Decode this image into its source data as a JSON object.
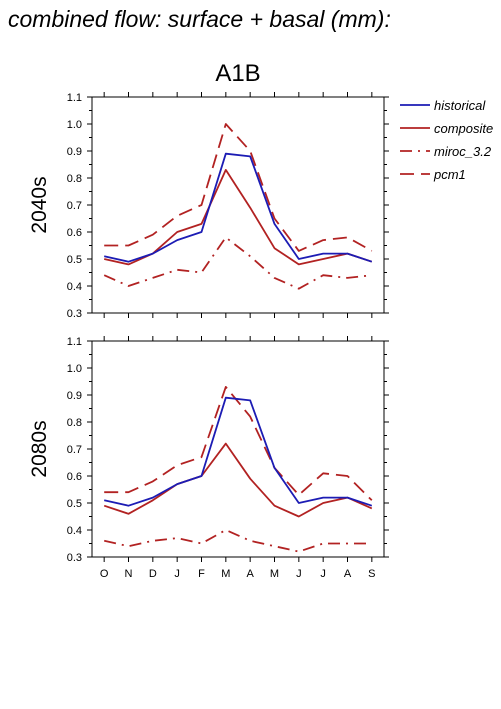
{
  "page_title": "combined flow: surface + basal (mm):",
  "colors": {
    "historical": "#1c1cb4",
    "scenario": "#b22222",
    "axis": "#000000"
  },
  "chart_data": [
    {
      "type": "line",
      "title": "A1B",
      "ylabel": "2040s",
      "xlabel": "",
      "categories": [
        "O",
        "N",
        "D",
        "J",
        "F",
        "M",
        "A",
        "M",
        "J",
        "J",
        "A",
        "S"
      ],
      "ylim": [
        0.3,
        1.1
      ],
      "yticks": [
        "0.3",
        "0.4",
        "0.5",
        "0.6",
        "0.7",
        "0.8",
        "0.9",
        "1.0",
        "1.1"
      ],
      "grid": false,
      "legend_position": "right",
      "series": [
        {
          "name": "historical",
          "color": "#1c1cb4",
          "dash": "solid",
          "values": [
            0.51,
            0.49,
            0.52,
            0.57,
            0.6,
            0.89,
            0.88,
            0.63,
            0.5,
            0.52,
            0.52,
            0.49
          ]
        },
        {
          "name": "composite",
          "color": "#b22222",
          "dash": "solid",
          "values": [
            0.5,
            0.48,
            0.52,
            0.6,
            0.63,
            0.83,
            0.69,
            0.54,
            0.48,
            0.5,
            0.52,
            0.49
          ]
        },
        {
          "name": "miroc_3.2",
          "color": "#b22222",
          "dash": "dashdot",
          "values": [
            0.44,
            0.4,
            0.43,
            0.46,
            0.45,
            0.58,
            0.51,
            0.43,
            0.39,
            0.44,
            0.43,
            0.44
          ]
        },
        {
          "name": "pcm1",
          "color": "#b22222",
          "dash": "dash",
          "values": [
            0.55,
            0.55,
            0.59,
            0.66,
            0.7,
            1.0,
            0.9,
            0.65,
            0.53,
            0.57,
            0.58,
            0.53
          ]
        }
      ]
    },
    {
      "type": "line",
      "title": "",
      "ylabel": "2080s",
      "xlabel": "",
      "categories": [
        "O",
        "N",
        "D",
        "J",
        "F",
        "M",
        "A",
        "M",
        "J",
        "J",
        "A",
        "S"
      ],
      "ylim": [
        0.3,
        1.1
      ],
      "yticks": [
        "0.3",
        "0.4",
        "0.5",
        "0.6",
        "0.7",
        "0.8",
        "0.9",
        "1.0",
        "1.1"
      ],
      "grid": false,
      "series": [
        {
          "name": "historical",
          "color": "#1c1cb4",
          "dash": "solid",
          "values": [
            0.51,
            0.49,
            0.52,
            0.57,
            0.6,
            0.89,
            0.88,
            0.63,
            0.5,
            0.52,
            0.52,
            0.49
          ]
        },
        {
          "name": "composite",
          "color": "#b22222",
          "dash": "solid",
          "values": [
            0.49,
            0.46,
            0.51,
            0.57,
            0.6,
            0.72,
            0.59,
            0.49,
            0.45,
            0.5,
            0.52,
            0.48
          ]
        },
        {
          "name": "miroc_3.2",
          "color": "#b22222",
          "dash": "dashdot",
          "values": [
            0.36,
            0.34,
            0.36,
            0.37,
            0.35,
            0.4,
            0.36,
            0.34,
            0.32,
            0.35,
            0.35,
            0.35
          ]
        },
        {
          "name": "pcm1",
          "color": "#b22222",
          "dash": "dash",
          "values": [
            0.54,
            0.54,
            0.58,
            0.64,
            0.67,
            0.93,
            0.82,
            0.63,
            0.53,
            0.61,
            0.6,
            0.51
          ]
        }
      ]
    }
  ]
}
